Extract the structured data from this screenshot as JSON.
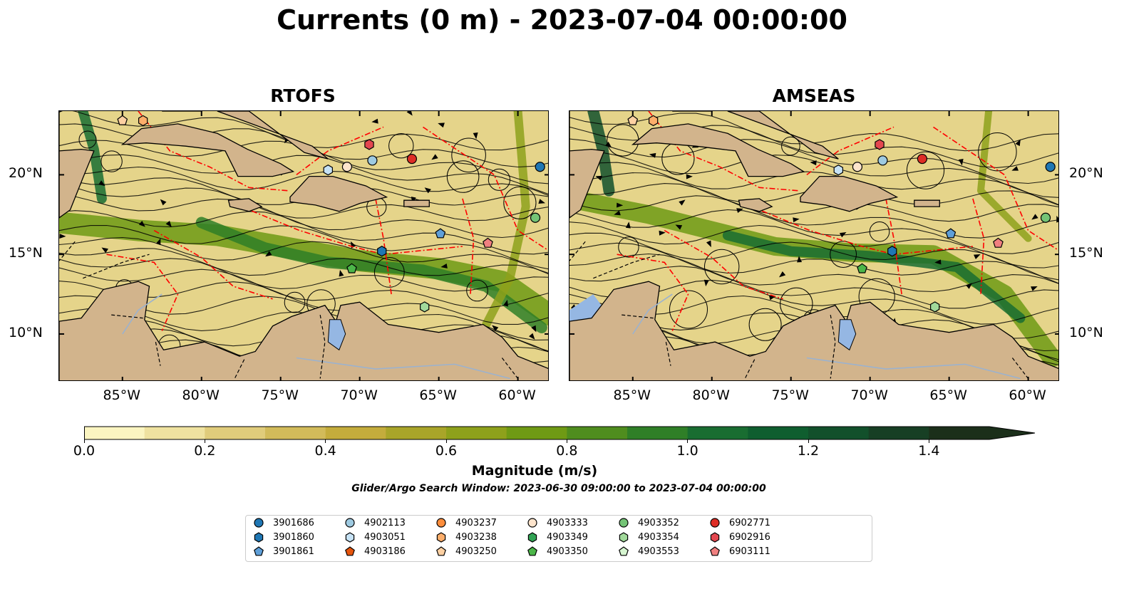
{
  "title": "Currents (0 m) - 2023-07-04 00:00:00",
  "panels": [
    {
      "id": "rtofs",
      "title": "RTOFS"
    },
    {
      "id": "amseas",
      "title": "AMSEAS"
    }
  ],
  "axes": {
    "lon_range": [
      -89,
      -58
    ],
    "lat_range": [
      7,
      24
    ],
    "lon_ticks": [
      "85°W",
      "80°W",
      "75°W",
      "70°W",
      "65°W",
      "60°W"
    ],
    "lon_tick_values": [
      -85,
      -80,
      -75,
      -70,
      -65,
      -60
    ],
    "lat_ticks": [
      "20°N",
      "15°N",
      "10°N"
    ],
    "lat_tick_values": [
      20,
      15,
      10
    ]
  },
  "colorbar": {
    "label": "Magnitude (m/s)",
    "range": [
      0.0,
      1.5
    ],
    "extend": "max",
    "tick_labels": [
      "0.0",
      "0.2",
      "0.4",
      "0.6",
      "0.8",
      "1.0",
      "1.2",
      "1.4"
    ],
    "tick_values": [
      0.0,
      0.2,
      0.4,
      0.6,
      0.8,
      1.0,
      1.2,
      1.4
    ],
    "colors": [
      "#fbf5c1",
      "#efe2a0",
      "#e0cc7b",
      "#d2bb5a",
      "#c4ac3c",
      "#a9a529",
      "#8ea11b",
      "#6f9a14",
      "#4f8d1e",
      "#2f7f27",
      "#196d31",
      "#0f5e2f",
      "#12502b",
      "#173f24",
      "#1b2f1a"
    ]
  },
  "search_window": "Glider/Argo Search Window: 2023-06-30 09:00:00 to 2023-07-04 00:00:00",
  "platforms": [
    {
      "id": "3901686",
      "marker": "circle",
      "color": "#1f77b4",
      "lon": -58.6,
      "lat": 20.5
    },
    {
      "id": "3901860",
      "marker": "hexagon",
      "color": "#1f77b4",
      "lon": -68.6,
      "lat": 15.2
    },
    {
      "id": "3901861",
      "marker": "pentagon",
      "color": "#5f9fd8",
      "lon": -64.9,
      "lat": 16.3
    },
    {
      "id": "4902113",
      "marker": "circle",
      "color": "#9ecae1",
      "lon": -69.2,
      "lat": 20.9
    },
    {
      "id": "4903051",
      "marker": "hexagon",
      "color": "#c6e2f5",
      "lon": -72.0,
      "lat": 20.3
    },
    {
      "id": "4903186",
      "marker": "pentagon",
      "color": "#e6550d",
      "lon": null,
      "lat": null
    },
    {
      "id": "4903237",
      "marker": "circle",
      "color": "#fd8d3c",
      "lon": null,
      "lat": null
    },
    {
      "id": "4903238",
      "marker": "hexagon",
      "color": "#fdae6b",
      "lon": -83.7,
      "lat": 23.4
    },
    {
      "id": "4903250",
      "marker": "pentagon",
      "color": "#fdd0a2",
      "lon": -85.0,
      "lat": 23.4
    },
    {
      "id": "4903333",
      "marker": "circle",
      "color": "#fde4cc",
      "lon": -70.8,
      "lat": 20.5
    },
    {
      "id": "4903349",
      "marker": "hexagon",
      "color": "#31a354",
      "lon": null,
      "lat": null
    },
    {
      "id": "4903350",
      "marker": "pentagon",
      "color": "#4cb649",
      "lon": -70.5,
      "lat": 14.1
    },
    {
      "id": "4903352",
      "marker": "circle",
      "color": "#74c476",
      "lon": -58.9,
      "lat": 17.3
    },
    {
      "id": "4903354",
      "marker": "hexagon",
      "color": "#a1d99b",
      "lon": -65.9,
      "lat": 11.7
    },
    {
      "id": "4903553",
      "marker": "pentagon",
      "color": "#d6f5d0",
      "lon": null,
      "lat": null
    },
    {
      "id": "6902771",
      "marker": "circle",
      "color": "#de2d26",
      "lon": -66.7,
      "lat": 21.0
    },
    {
      "id": "6902916",
      "marker": "hexagon",
      "color": "#e3474f",
      "lon": -69.4,
      "lat": 21.9
    },
    {
      "id": "6903111",
      "marker": "pentagon",
      "color": "#f08080",
      "lon": -61.9,
      "lat": 15.7
    }
  ],
  "colors": {
    "land": "#d2b48c",
    "lake": "#95b7e3",
    "eez": "#ff0000",
    "border": "#000000"
  }
}
